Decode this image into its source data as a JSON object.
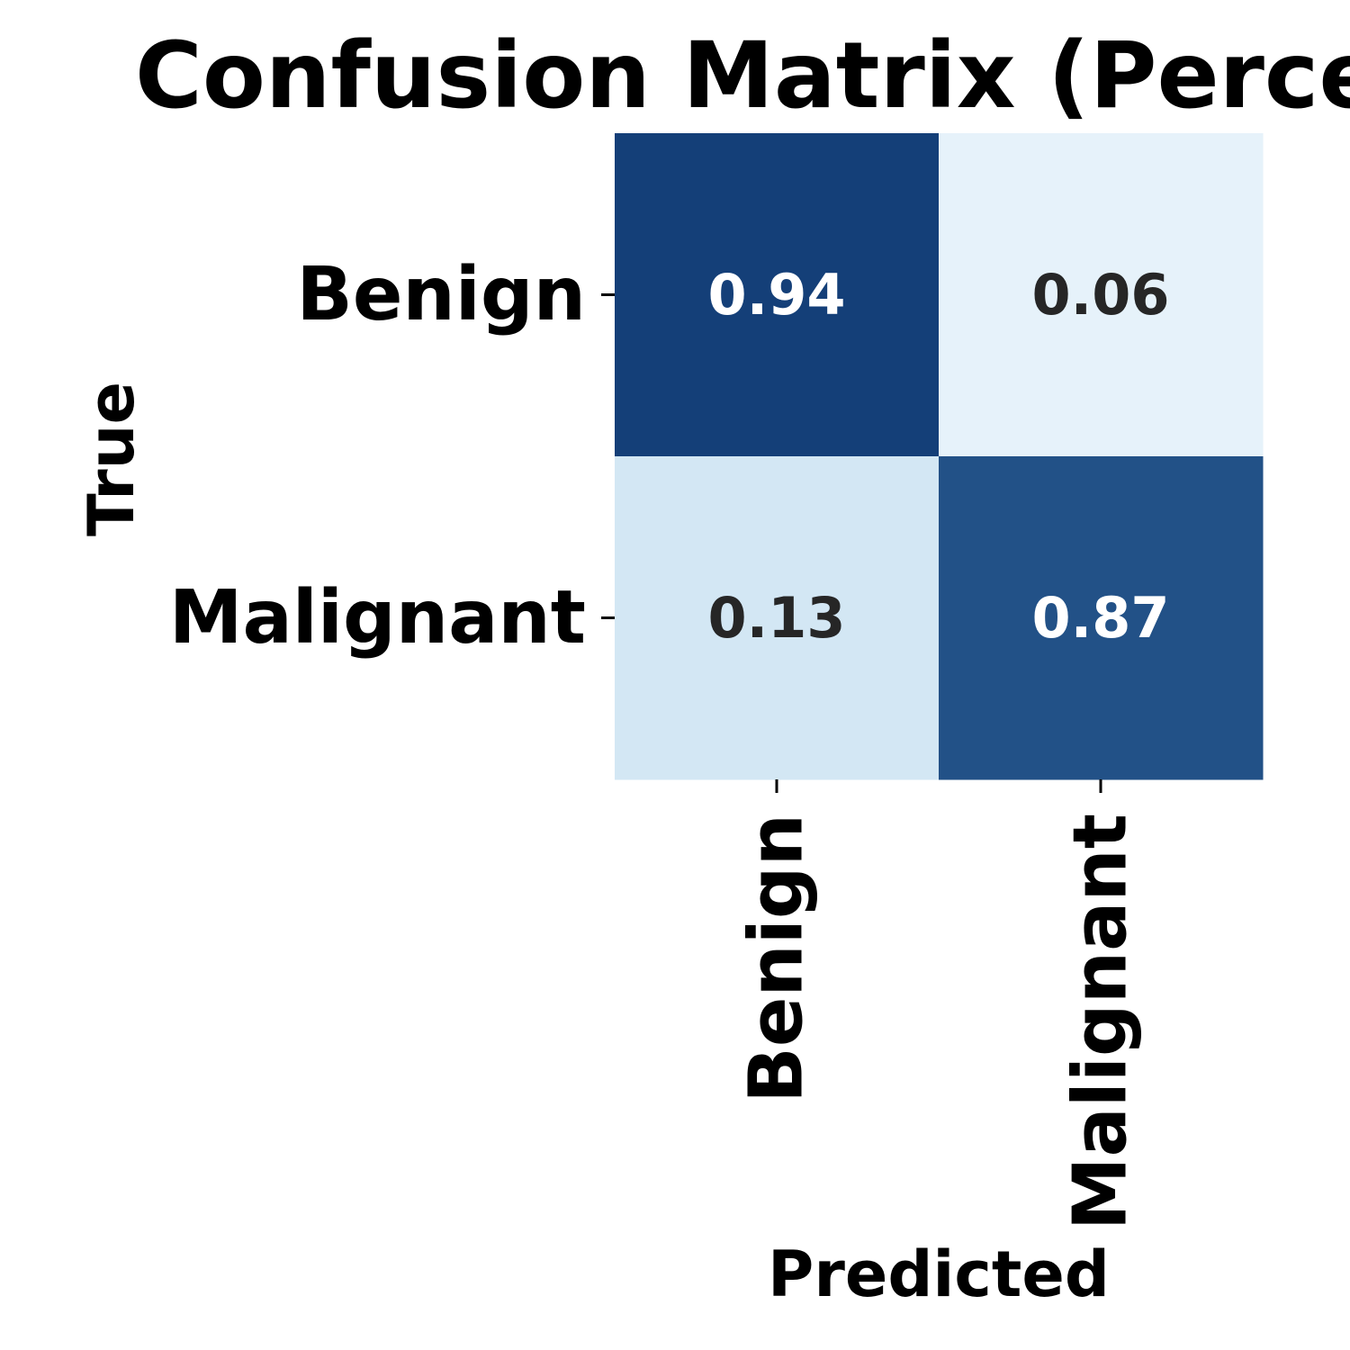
{
  "chart_data": {
    "type": "heatmap",
    "title": "Confusion Matrix (Perce",
    "xlabel": "Predicted",
    "ylabel": "True",
    "rows": [
      "Benign",
      "Malignant"
    ],
    "columns": [
      "Benign",
      "Malignant"
    ],
    "values": [
      [
        0.94,
        0.06
      ],
      [
        0.13,
        0.87
      ]
    ],
    "value_labels": [
      [
        "0.94",
        "0.06"
      ],
      [
        "0.13",
        "0.87"
      ]
    ],
    "colormap": "Blues",
    "color_range": [
      0.0,
      1.0
    ],
    "colors": {
      "low": "#f7fbff",
      "mid": "#6baed6",
      "high": "#08306b",
      "text_dark": "#262626",
      "text_light": "#ffffff"
    },
    "colorbar": false,
    "grid": false
  }
}
